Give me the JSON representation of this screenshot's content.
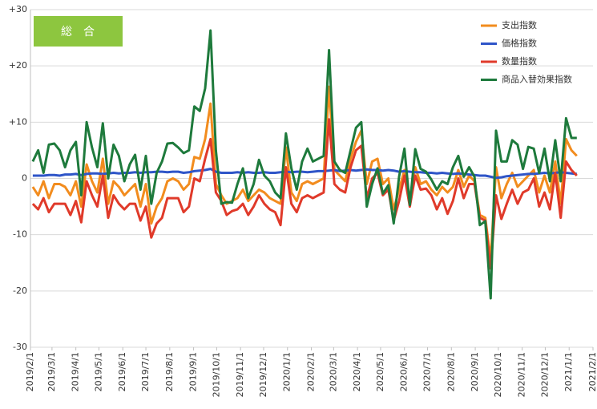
{
  "chart_data": {
    "type": "line",
    "title": "総　合",
    "x": [
      "2019/2/4",
      "2019/2/11",
      "2019/2/18",
      "2019/2/25",
      "2019/3/4",
      "2019/3/11",
      "2019/3/18",
      "2019/3/25",
      "2019/4/1",
      "2019/4/8",
      "2019/4/15",
      "2019/4/22",
      "2019/4/29",
      "2019/5/6",
      "2019/5/13",
      "2019/5/20",
      "2019/5/27",
      "2019/6/3",
      "2019/6/10",
      "2019/6/17",
      "2019/6/24",
      "2019/7/1",
      "2019/7/8",
      "2019/7/15",
      "2019/7/22",
      "2019/7/29",
      "2019/8/5",
      "2019/8/12",
      "2019/8/19",
      "2019/8/26",
      "2019/9/2",
      "2019/9/9",
      "2019/9/16",
      "2019/9/23",
      "2019/9/30",
      "2019/10/7",
      "2019/10/14",
      "2019/10/21",
      "2019/10/28",
      "2019/11/4",
      "2019/11/11",
      "2019/11/18",
      "2019/11/25",
      "2019/12/2",
      "2019/12/9",
      "2019/12/16",
      "2019/12/23",
      "2019/12/30",
      "2020/1/6",
      "2020/1/13",
      "2020/1/20",
      "2020/1/27",
      "2020/2/3",
      "2020/2/10",
      "2020/2/17",
      "2020/2/24",
      "2020/3/2",
      "2020/3/9",
      "2020/3/16",
      "2020/3/23",
      "2020/3/30",
      "2020/4/6",
      "2020/4/13",
      "2020/4/20",
      "2020/4/27",
      "2020/5/4",
      "2020/5/11",
      "2020/5/18",
      "2020/5/25",
      "2020/6/1",
      "2020/6/8",
      "2020/6/15",
      "2020/6/22",
      "2020/6/29",
      "2020/7/6",
      "2020/7/13",
      "2020/7/20",
      "2020/7/27",
      "2020/8/3",
      "2020/8/10",
      "2020/8/17",
      "2020/8/24",
      "2020/8/31",
      "2020/9/7",
      "2020/9/14",
      "2020/9/21",
      "2020/9/28",
      "2020/10/5",
      "2020/10/12",
      "2020/10/19",
      "2020/10/26",
      "2020/11/2",
      "2020/11/9",
      "2020/11/16",
      "2020/11/23",
      "2020/11/30",
      "2020/12/7",
      "2020/12/14",
      "2020/12/21",
      "2020/12/28",
      "2021/1/4",
      "2021/1/11"
    ],
    "series": [
      {
        "name": "支出指数",
        "color": "#f28c1e",
        "values": [
          -1.5,
          -3,
          -0.5,
          -3.5,
          -1,
          -1,
          -1.5,
          -3,
          -0.5,
          -5,
          2.5,
          -0.5,
          -2.5,
          3.5,
          -4.5,
          -0.5,
          -1.5,
          -3,
          -2,
          -1,
          -5,
          -1,
          -8,
          -5,
          -3.5,
          -0.5,
          0,
          -0.5,
          -2,
          -1,
          3.8,
          3.5,
          7,
          13.3,
          -1,
          -3,
          -4.5,
          -4,
          -3.5,
          -2,
          -4,
          -3,
          -2,
          -2.5,
          -3.5,
          -4,
          -4.5,
          5.5,
          -2.5,
          -4,
          -1,
          -0.5,
          -1,
          -0.5,
          0,
          16.3,
          1.5,
          0.5,
          -0.5,
          3.5,
          6.5,
          8.5,
          -1,
          3,
          3.5,
          -1,
          0,
          -5.5,
          -2,
          1.5,
          -3.5,
          2,
          -1,
          -0.5,
          -2,
          -3,
          -1.5,
          -2.5,
          -1.5,
          1.5,
          -1.5,
          0.5,
          -0.5,
          -6.5,
          -7,
          -14.5,
          2,
          -3.5,
          -1,
          1,
          -1.5,
          -0.5,
          0.5,
          1.5,
          -2.5,
          0.5,
          -2.5,
          3,
          -4.5,
          7,
          5,
          4
        ]
      },
      {
        "name": "価格指数",
        "color": "#2f55c8",
        "values": [
          0.5,
          0.5,
          0.5,
          0.6,
          0.6,
          0.5,
          0.7,
          0.7,
          0.8,
          0.6,
          0.8,
          0.9,
          0.9,
          0.8,
          0.9,
          1,
          0.9,
          1,
          1,
          1.1,
          1,
          1.1,
          1.1,
          1.2,
          1.2,
          1.1,
          1.2,
          1.2,
          1,
          1.1,
          1.3,
          1.4,
          1.5,
          1.7,
          1.2,
          1,
          1,
          1,
          1.1,
          1,
          1.1,
          1,
          1,
          1.1,
          1,
          1,
          1.1,
          1.2,
          1.1,
          1.2,
          1.2,
          1.1,
          1.2,
          1.3,
          1.3,
          1.4,
          1.5,
          1.3,
          1.4,
          1.5,
          1.4,
          1.5,
          1.6,
          1.5,
          1.5,
          1.4,
          1.5,
          1.4,
          1.2,
          1.3,
          1.2,
          1.1,
          1.1,
          1,
          1,
          0.9,
          1,
          0.9,
          0.8,
          0.9,
          0.8,
          0.7,
          0.6,
          0.5,
          0.5,
          0.3,
          0.1,
          0.2,
          0.4,
          0.5,
          0.6,
          0.7,
          0.8,
          0.8,
          0.9,
          1,
          0.9,
          1,
          1.1,
          1,
          0.9,
          0.8
        ]
      },
      {
        "name": "数量指数",
        "color": "#e03a2a",
        "values": [
          -4.5,
          -5.5,
          -3.5,
          -6,
          -4.5,
          -4.5,
          -4.5,
          -6.5,
          -4,
          -7.8,
          -0.5,
          -3,
          -5,
          0.5,
          -7,
          -3,
          -4.5,
          -5.5,
          -4.5,
          -4.5,
          -7.5,
          -5,
          -10.5,
          -8,
          -7,
          -3.5,
          -3.5,
          -3.5,
          -6,
          -5,
          0,
          -0.5,
          3.5,
          7,
          -2.5,
          -4,
          -6.5,
          -5.8,
          -5.5,
          -4.5,
          -6.5,
          -5,
          -3,
          -4.5,
          -5.5,
          -6,
          -8.3,
          2,
          -4.5,
          -6,
          -3.5,
          -3,
          -3.5,
          -3,
          -2.5,
          10.5,
          -1,
          -2,
          -2.5,
          2,
          5,
          5.8,
          -3.5,
          0,
          1,
          -3,
          -2,
          -7.5,
          -4,
          0.5,
          -5,
          0.5,
          -2,
          -1.8,
          -3,
          -5.5,
          -3.5,
          -6.3,
          -4,
          0,
          -3.5,
          -1,
          -1,
          -7,
          -7.5,
          -16,
          -3,
          -7.2,
          -4.5,
          -2,
          -4.5,
          -2.5,
          -2,
          0,
          -5,
          -2.5,
          -5.5,
          1,
          -7,
          3,
          1.5,
          0.5
        ]
      },
      {
        "name": "商品入替効果指数",
        "color": "#1e7a3c",
        "values": [
          3,
          5,
          1,
          6,
          6.2,
          5,
          2,
          5,
          6.5,
          -3,
          10,
          5.5,
          2,
          9.8,
          0,
          6,
          4,
          -0.5,
          2.5,
          4.2,
          -2,
          4,
          -4.5,
          1,
          3,
          6.2,
          6.3,
          5.5,
          4.5,
          5,
          12.8,
          12,
          16,
          26.3,
          5,
          -4.5,
          -4.2,
          -4.3,
          -1,
          1.8,
          -3.5,
          -1,
          3.3,
          0.5,
          -0.5,
          -2.5,
          -3.5,
          8,
          1.8,
          -2,
          3,
          5.3,
          3,
          3.5,
          4,
          22.8,
          3,
          1.5,
          1,
          5,
          9,
          10,
          -5,
          -1,
          1.8,
          -2.7,
          -1.2,
          -8,
          0.3,
          5.3,
          -4.7,
          5.2,
          1.7,
          1.2,
          -0.2,
          -2,
          -0.5,
          -1,
          2,
          4,
          0.3,
          2,
          0.3,
          -8.3,
          -7.6,
          -21.3,
          8.5,
          3,
          3,
          6.8,
          6,
          1.7,
          5.6,
          5.3,
          1,
          5.3,
          -0.5,
          6.8,
          -0.5,
          10.7,
          7.2,
          7.2
        ]
      }
    ],
    "xlim": [
      "2019/2/1",
      "2021/2/1"
    ],
    "xticks": [
      "2019/2/1",
      "2019/3/1",
      "2019/4/1",
      "2019/5/1",
      "2019/6/1",
      "2019/7/1",
      "2019/8/1",
      "2019/9/1",
      "2019/10/1",
      "2019/11/1",
      "2019/12/1",
      "2020/1/1",
      "2020/2/1",
      "2020/3/1",
      "2020/4/1",
      "2020/5/1",
      "2020/6/1",
      "2020/7/1",
      "2020/8/1",
      "2020/9/1",
      "2020/10/1",
      "2020/11/1",
      "2020/12/1",
      "2021/1/1",
      "2021/2/1"
    ],
    "ylim": [
      -30,
      30
    ],
    "yticks": [
      -30,
      -20,
      -10,
      0,
      {
        "value": 10,
        "label": "+10"
      },
      {
        "value": 20,
        "label": "+20"
      },
      {
        "value": 30,
        "label": "+30"
      }
    ],
    "grid": true,
    "legend": "top-right"
  }
}
